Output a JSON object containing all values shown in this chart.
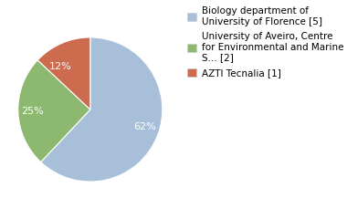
{
  "slices": [
    62,
    25,
    13
  ],
  "pct_labels": [
    "62%",
    "25%",
    "12%"
  ],
  "colors": [
    "#a8bfda",
    "#8db870",
    "#cc6b4e"
  ],
  "legend_labels": [
    "Biology department of\nUniversity of Florence [5]",
    "University of Aveiro, Centre\nfor Environmental and Marine\nS... [2]",
    "AZTI Tecnalia [1]"
  ],
  "startangle": 90,
  "text_color": "white",
  "font_size": 8,
  "legend_fontsize": 7.5,
  "bg_color": "#ffffff"
}
